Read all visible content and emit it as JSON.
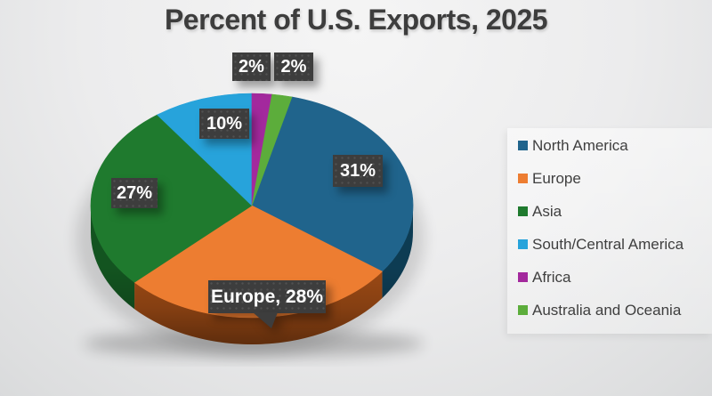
{
  "chart_data": {
    "type": "pie",
    "title": "Percent of U.S. Exports, 2025",
    "style": "3d",
    "start_angle_deg": 14.4,
    "legend_position": "right",
    "grid": false,
    "slices": [
      {
        "label": "North America",
        "value": 31,
        "color": "#20648c",
        "side_color": "#0d3c53",
        "data_label": "31%"
      },
      {
        "label": "Europe",
        "value": 28,
        "color": "#ed7d31",
        "side_color": "#9c4a15",
        "data_label": "Europe, 28%"
      },
      {
        "label": "Asia",
        "value": 27,
        "color": "#1f7a2e",
        "side_color": "#135420",
        "data_label": "27%"
      },
      {
        "label": "South/Central America",
        "value": 10,
        "color": "#27a3db",
        "side_color": "#145d7e",
        "data_label": "10%"
      },
      {
        "label": "Africa",
        "value": 2,
        "color": "#a3299d",
        "side_color": "#5c1759",
        "data_label": "2%"
      },
      {
        "label": "Australia and Oceania",
        "value": 2,
        "color": "#5cad3b",
        "side_color": "#356523",
        "data_label": "2%"
      }
    ],
    "label_box_color": "#3d3d3d",
    "label_text_color": "#ffffff",
    "title_color": "#3d3d3d"
  }
}
